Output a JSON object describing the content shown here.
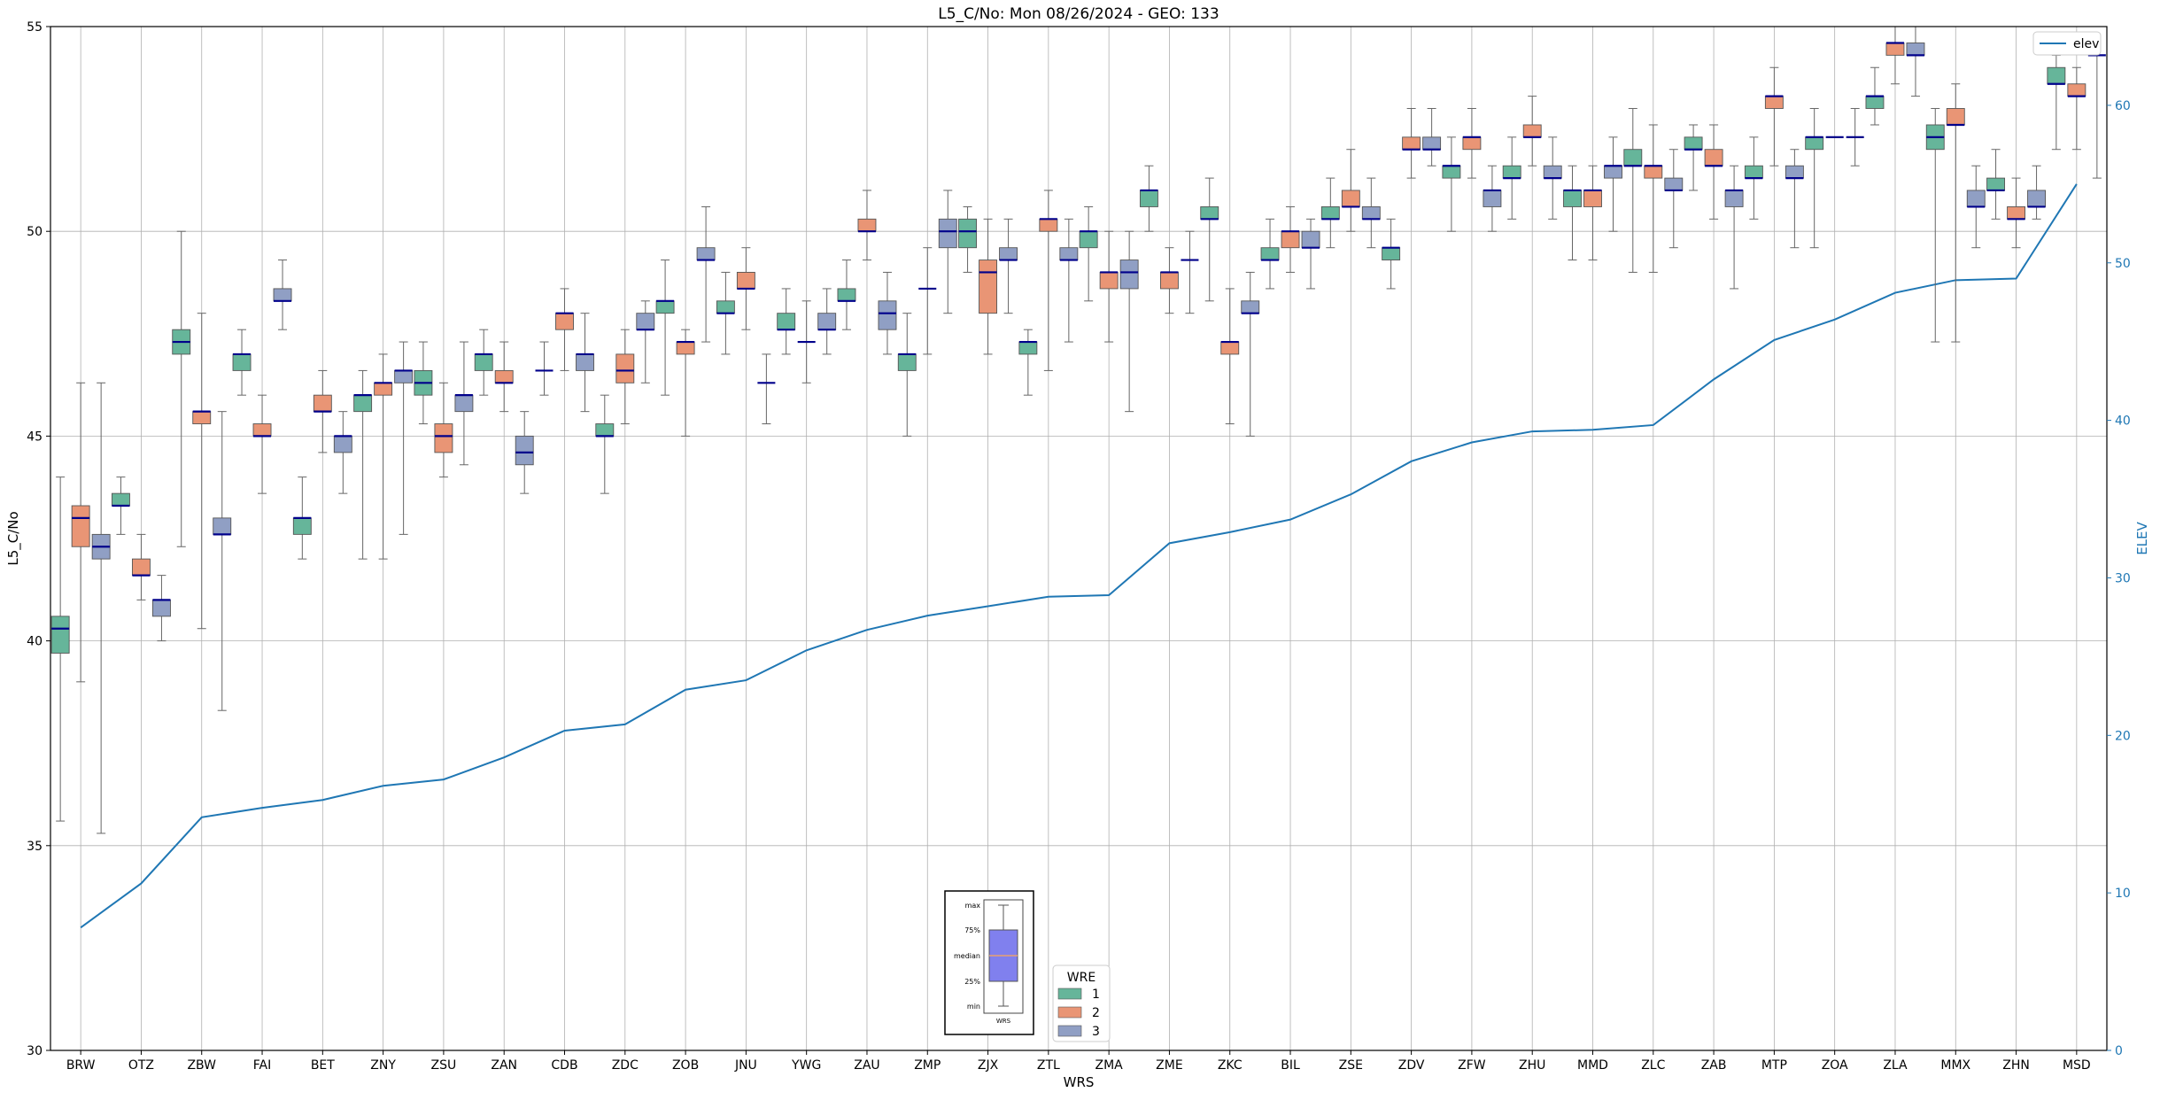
{
  "chart_data": {
    "type": "box",
    "title": "L5_C/No: Mon 08/26/2024 - GEO: 133",
    "xlabel": "WRS",
    "ylabel": "L5_C/No",
    "y2label": "ELEV",
    "ylim": [
      30,
      55
    ],
    "y2lim": [
      0,
      65
    ],
    "yticks": [
      30,
      35,
      40,
      45,
      50,
      55
    ],
    "y2ticks": [
      0,
      10,
      20,
      30,
      40,
      50,
      60
    ],
    "grid": true,
    "categories": [
      "BRW",
      "OTZ",
      "ZBW",
      "FAI",
      "BET",
      "ZNY",
      "ZSU",
      "ZAN",
      "CDB",
      "ZDC",
      "ZOB",
      "JNU",
      "YWG",
      "ZAU",
      "ZMP",
      "ZJX",
      "ZTL",
      "ZMA",
      "ZME",
      "ZKC",
      "BIL",
      "ZSE",
      "ZDV",
      "ZFW",
      "ZHU",
      "MMD",
      "ZLC",
      "ZAB",
      "MTP",
      "ZOA",
      "ZLA",
      "MMX",
      "ZHN",
      "MSD"
    ],
    "legend": {
      "title": "WRE",
      "placement": "bottom-center",
      "entries": [
        {
          "name": "1",
          "color": "#66b59a"
        },
        {
          "name": "2",
          "color": "#e99575"
        },
        {
          "name": "3",
          "color": "#909fc4"
        }
      ]
    },
    "line_legend": {
      "name": "elev",
      "color": "#1f77b4",
      "placement": "top-right"
    },
    "median_color": "#00008b",
    "boxes": [
      [
        [
          35.6,
          39.7,
          40.3,
          40.6,
          44.0
        ],
        [
          39.0,
          42.3,
          43.0,
          43.3,
          46.3
        ],
        [
          35.3,
          42.0,
          42.3,
          42.6,
          46.3
        ]
      ],
      [
        [
          42.6,
          43.3,
          43.3,
          43.6,
          44.0
        ],
        [
          41.0,
          41.6,
          41.6,
          42.0,
          42.6
        ],
        [
          40.0,
          40.6,
          41.0,
          41.0,
          41.6
        ]
      ],
      [
        [
          42.3,
          47.0,
          47.3,
          47.6,
          50.0
        ],
        [
          40.3,
          45.3,
          45.6,
          45.6,
          48.0
        ],
        [
          38.3,
          42.6,
          42.6,
          43.0,
          45.6
        ]
      ],
      [
        [
          46.0,
          46.6,
          47.0,
          47.0,
          47.6
        ],
        [
          43.6,
          45.0,
          45.0,
          45.3,
          46.0
        ],
        [
          47.6,
          48.3,
          48.3,
          48.6,
          49.3
        ]
      ],
      [
        [
          42.0,
          42.6,
          43.0,
          43.0,
          44.0
        ],
        [
          44.6,
          45.6,
          45.6,
          46.0,
          46.6
        ],
        [
          43.6,
          44.6,
          45.0,
          45.0,
          45.6
        ]
      ],
      [
        [
          42.0,
          45.6,
          46.0,
          46.0,
          46.6
        ],
        [
          42.0,
          46.0,
          46.3,
          46.3,
          47.0
        ],
        [
          42.6,
          46.3,
          46.6,
          46.6,
          47.3
        ]
      ],
      [
        [
          45.3,
          46.0,
          46.3,
          46.6,
          47.3
        ],
        [
          44.0,
          44.6,
          45.0,
          45.3,
          46.3
        ],
        [
          44.3,
          45.6,
          46.0,
          46.0,
          47.3
        ]
      ],
      [
        [
          46.0,
          46.6,
          47.0,
          47.0,
          47.6
        ],
        [
          45.6,
          46.3,
          46.3,
          46.6,
          47.3
        ],
        [
          43.6,
          44.3,
          44.6,
          45.0,
          45.6
        ]
      ],
      [
        [
          46.0,
          46.6,
          46.6,
          46.6,
          47.3
        ],
        [
          46.6,
          47.6,
          48.0,
          48.0,
          48.6
        ],
        [
          45.6,
          46.6,
          47.0,
          47.0,
          48.0
        ]
      ],
      [
        [
          43.6,
          45.0,
          45.0,
          45.3,
          46.0
        ],
        [
          45.3,
          46.3,
          46.6,
          47.0,
          47.6
        ],
        [
          46.3,
          47.6,
          47.6,
          48.0,
          48.3
        ]
      ],
      [
        [
          46.0,
          48.0,
          48.3,
          48.3,
          49.3
        ],
        [
          45.0,
          47.0,
          47.3,
          47.3,
          47.6
        ],
        [
          47.3,
          49.3,
          49.3,
          49.6,
          50.6
        ]
      ],
      [
        [
          47.0,
          48.0,
          48.0,
          48.3,
          49.0
        ],
        [
          47.6,
          48.6,
          48.6,
          49.0,
          49.6
        ],
        [
          45.3,
          46.3,
          46.3,
          46.3,
          47.0
        ]
      ],
      [
        [
          47.0,
          47.6,
          47.6,
          48.0,
          48.6
        ],
        [
          46.3,
          47.3,
          47.3,
          47.3,
          48.3
        ],
        [
          47.0,
          47.6,
          47.6,
          48.0,
          48.6
        ]
      ],
      [
        [
          47.6,
          48.3,
          48.3,
          48.6,
          49.3
        ],
        [
          49.3,
          50.0,
          50.0,
          50.3,
          51.0
        ],
        [
          47.0,
          47.6,
          48.0,
          48.3,
          49.0
        ]
      ],
      [
        [
          45.0,
          46.6,
          47.0,
          47.0,
          48.0
        ],
        [
          47.0,
          48.6,
          48.6,
          48.6,
          49.6
        ],
        [
          48.0,
          49.6,
          50.0,
          50.3,
          51.0
        ]
      ],
      [
        [
          49.0,
          49.6,
          50.0,
          50.3,
          50.6
        ],
        [
          47.0,
          48.0,
          49.0,
          49.3,
          50.3
        ],
        [
          48.0,
          49.3,
          49.3,
          49.6,
          50.3
        ]
      ],
      [
        [
          46.0,
          47.0,
          47.3,
          47.3,
          47.6
        ],
        [
          46.6,
          50.0,
          50.3,
          50.3,
          51.0
        ],
        [
          47.3,
          49.3,
          49.3,
          49.6,
          50.3
        ]
      ],
      [
        [
          48.3,
          49.6,
          50.0,
          50.0,
          50.6
        ],
        [
          47.3,
          48.6,
          49.0,
          49.0,
          50.0
        ],
        [
          45.6,
          48.6,
          49.0,
          49.3,
          50.0
        ]
      ],
      [
        [
          50.0,
          50.6,
          51.0,
          51.0,
          51.6
        ],
        [
          48.0,
          48.6,
          49.0,
          49.0,
          49.6
        ],
        [
          48.0,
          49.3,
          49.3,
          49.3,
          50.0
        ]
      ],
      [
        [
          48.3,
          50.3,
          50.3,
          50.6,
          51.3
        ],
        [
          45.3,
          47.0,
          47.3,
          47.3,
          48.6
        ],
        [
          45.0,
          48.0,
          48.0,
          48.3,
          49.0
        ]
      ],
      [
        [
          48.6,
          49.3,
          49.3,
          49.6,
          50.3
        ],
        [
          49.0,
          49.6,
          50.0,
          50.0,
          50.6
        ],
        [
          48.6,
          49.6,
          49.6,
          50.0,
          50.3
        ]
      ],
      [
        [
          49.6,
          50.3,
          50.3,
          50.6,
          51.3
        ],
        [
          50.0,
          50.6,
          50.6,
          51.0,
          52.0
        ],
        [
          49.6,
          50.3,
          50.3,
          50.6,
          51.3
        ]
      ],
      [
        [
          48.6,
          49.3,
          49.6,
          49.6,
          50.3
        ],
        [
          51.3,
          52.0,
          52.0,
          52.3,
          53.0
        ],
        [
          51.6,
          52.0,
          52.0,
          52.3,
          53.0
        ]
      ],
      [
        [
          50.0,
          51.3,
          51.6,
          51.6,
          52.3
        ],
        [
          51.3,
          52.0,
          52.3,
          52.3,
          53.0
        ],
        [
          50.0,
          50.6,
          51.0,
          51.0,
          51.6
        ]
      ],
      [
        [
          50.3,
          51.3,
          51.3,
          51.6,
          52.3
        ],
        [
          51.6,
          52.3,
          52.3,
          52.6,
          53.3
        ],
        [
          50.3,
          51.3,
          51.3,
          51.6,
          52.3
        ]
      ],
      [
        [
          49.3,
          50.6,
          51.0,
          51.0,
          51.6
        ],
        [
          49.3,
          50.6,
          51.0,
          51.0,
          51.6
        ],
        [
          50.0,
          51.3,
          51.6,
          51.6,
          52.3
        ]
      ],
      [
        [
          49.0,
          51.6,
          51.6,
          52.0,
          53.0
        ],
        [
          49.0,
          51.3,
          51.6,
          51.6,
          52.6
        ],
        [
          49.6,
          51.0,
          51.0,
          51.3,
          52.0
        ]
      ],
      [
        [
          51.0,
          52.0,
          52.0,
          52.3,
          52.6
        ],
        [
          50.3,
          51.6,
          51.6,
          52.0,
          52.6
        ],
        [
          48.6,
          50.6,
          51.0,
          51.0,
          51.6
        ]
      ],
      [
        [
          50.3,
          51.3,
          51.3,
          51.6,
          52.3
        ],
        [
          51.6,
          53.0,
          53.3,
          53.3,
          54.0
        ],
        [
          49.6,
          51.3,
          51.3,
          51.6,
          52.0
        ]
      ],
      [
        [
          49.6,
          52.0,
          52.3,
          52.3,
          53.0
        ],
        [
          52.3,
          52.3,
          52.3,
          52.3,
          52.3
        ],
        [
          51.6,
          52.3,
          52.3,
          52.3,
          53.0
        ]
      ],
      [
        [
          52.6,
          53.0,
          53.3,
          53.3,
          54.0
        ],
        [
          53.6,
          54.3,
          54.6,
          54.6,
          55.0
        ],
        [
          53.3,
          54.3,
          54.3,
          54.6,
          55.0
        ]
      ],
      [
        [
          47.3,
          52.0,
          52.3,
          52.6,
          53.0
        ],
        [
          47.3,
          52.6,
          52.6,
          53.0,
          53.6
        ],
        [
          49.6,
          50.6,
          50.6,
          51.0,
          51.6
        ]
      ],
      [
        [
          50.3,
          51.0,
          51.0,
          51.3,
          52.0
        ],
        [
          49.6,
          50.3,
          50.3,
          50.6,
          51.3
        ],
        [
          50.3,
          50.6,
          50.6,
          51.0,
          51.6
        ]
      ],
      [
        [
          52.0,
          53.6,
          53.6,
          54.0,
          54.3
        ],
        [
          52.0,
          53.3,
          53.3,
          53.6,
          54.0
        ],
        [
          51.3,
          54.3,
          54.3,
          54.3,
          54.3
        ]
      ]
    ],
    "elev": [
      7.8,
      10.6,
      14.8,
      15.4,
      15.9,
      16.8,
      17.2,
      18.6,
      20.3,
      20.7,
      22.9,
      23.5,
      25.4,
      26.7,
      27.6,
      28.2,
      28.8,
      28.9,
      32.2,
      32.9,
      33.7,
      35.3,
      37.4,
      38.6,
      39.3,
      39.4,
      39.7,
      42.6,
      45.1,
      46.4,
      48.1,
      48.9,
      49.0,
      55.0
    ],
    "inset_legend": {
      "labels": [
        "max",
        "75%",
        "median",
        "25%",
        "min"
      ],
      "caption": "WRS"
    }
  }
}
